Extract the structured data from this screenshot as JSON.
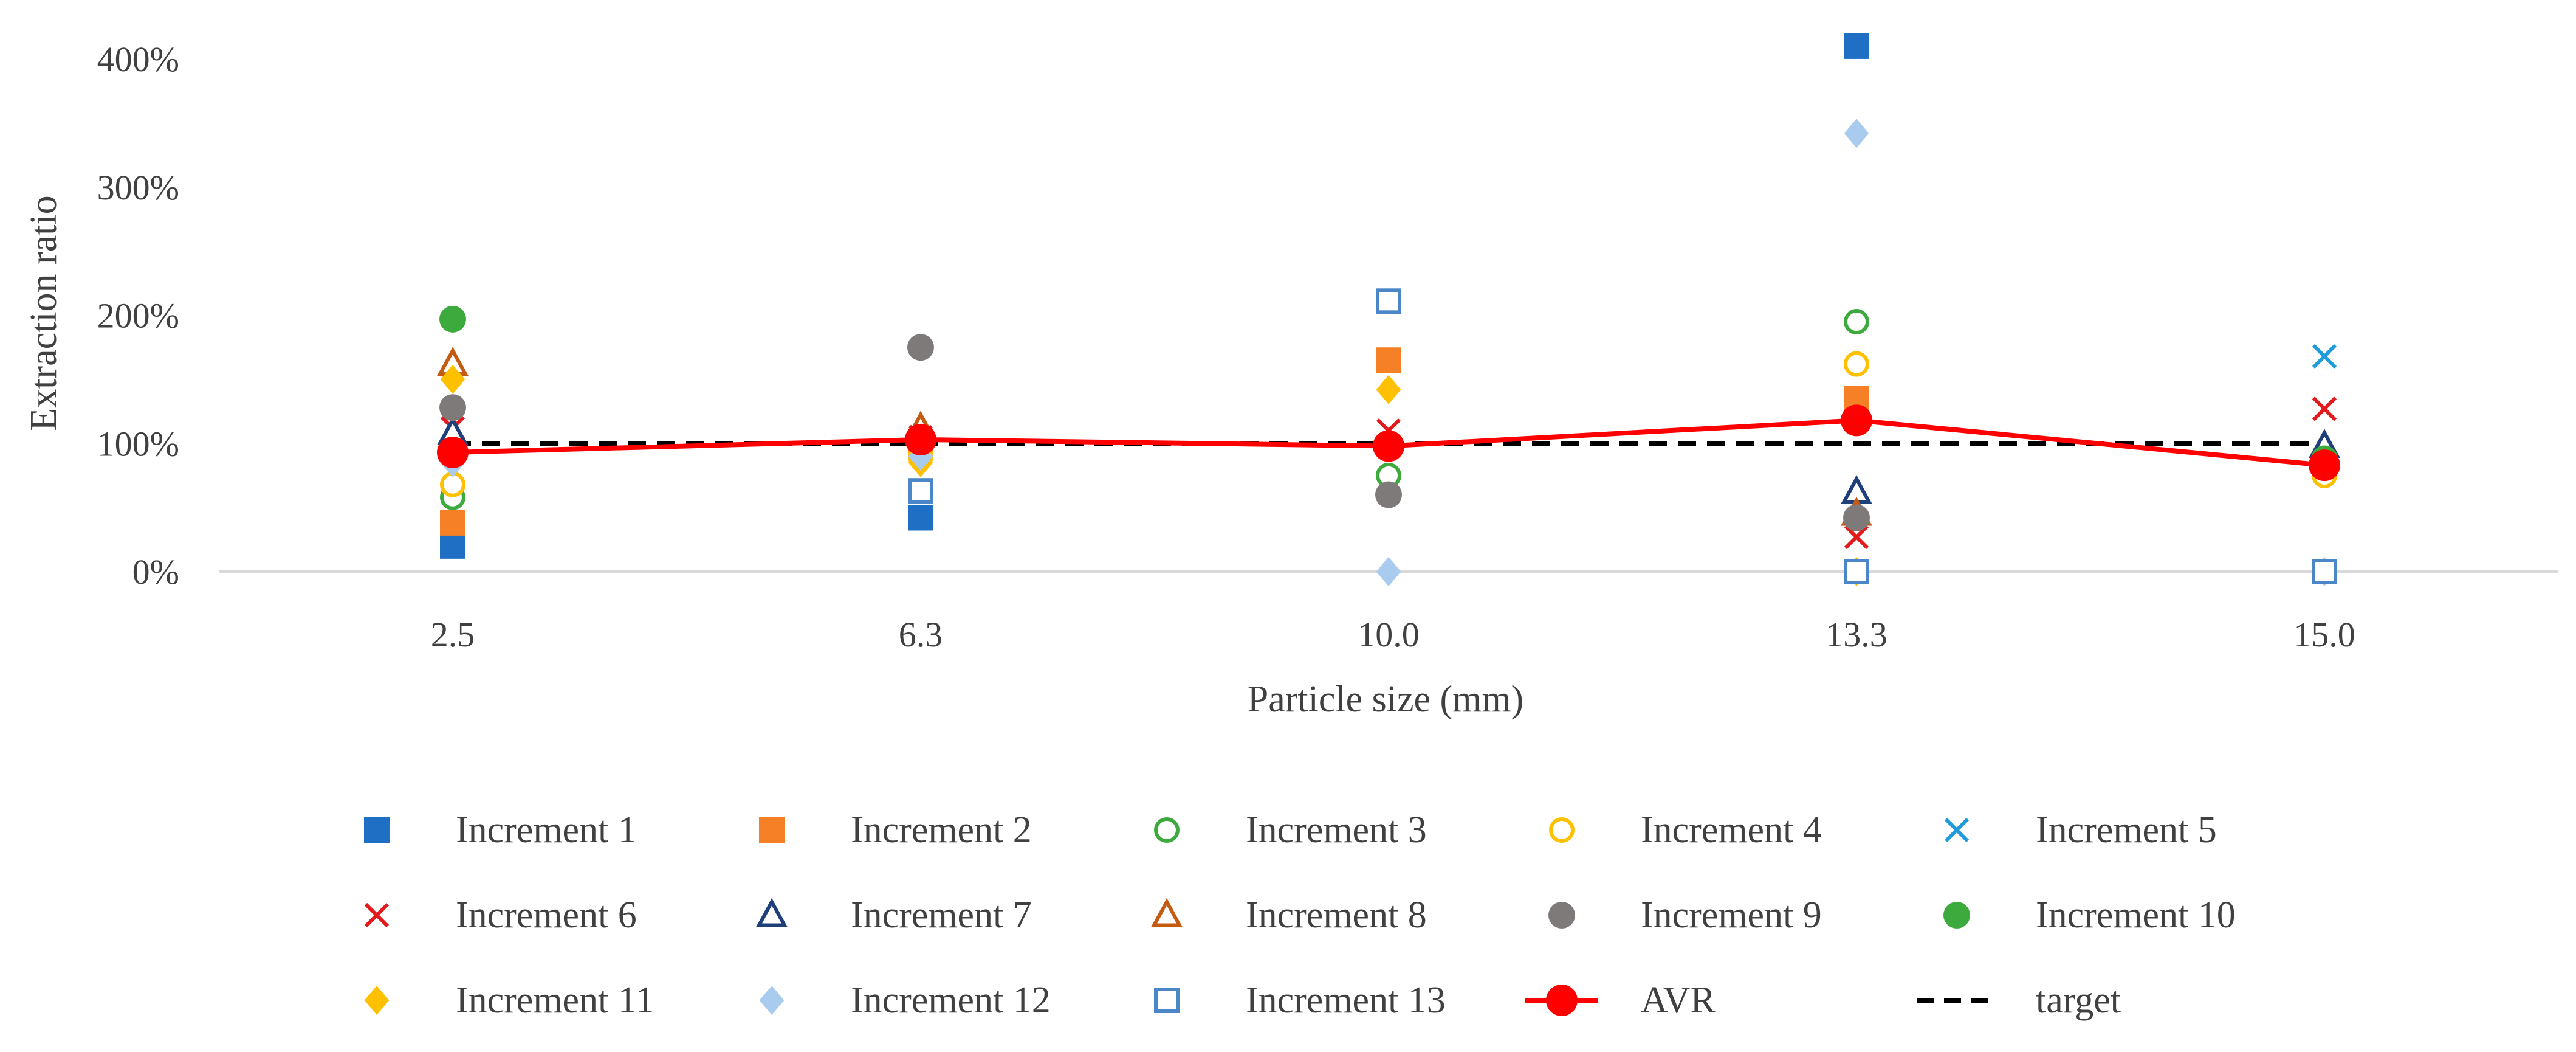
{
  "chart_data": {
    "type": "scatter",
    "title": "",
    "xlabel": "Particle size (mm)",
    "ylabel": "Extraction ratio",
    "categories": [
      "2.5",
      "6.3",
      "10.0",
      "13.3",
      "15.0"
    ],
    "y_ticks": [
      0,
      100,
      200,
      300,
      400
    ],
    "y_tick_labels": [
      "0%",
      "100%",
      "200%",
      "300%",
      "400%"
    ],
    "ylim": [
      0,
      420
    ],
    "grid": false,
    "legend_position": "bottom",
    "series": [
      {
        "name": "Increment 1",
        "marker": "square-filled",
        "color": "#1F6FC5",
        "values": [
          20,
          42,
          null,
          410,
          null
        ]
      },
      {
        "name": "Increment 2",
        "marker": "square-filled",
        "color": "#F58025",
        "values": [
          38,
          98,
          165,
          135,
          null
        ]
      },
      {
        "name": "Increment 3",
        "marker": "circle-open",
        "color": "#3DAA3D",
        "values": [
          58,
          null,
          75,
          195,
          null
        ]
      },
      {
        "name": "Increment 4",
        "marker": "circle-open",
        "color": "#FFC000",
        "values": [
          68,
          90,
          null,
          162,
          75
        ]
      },
      {
        "name": "Increment 5",
        "marker": "x",
        "color": "#1E9BDB",
        "values": [
          null,
          null,
          null,
          118,
          168
        ]
      },
      {
        "name": "Increment 6",
        "marker": "x",
        "color": "#E31A1C",
        "values": [
          112,
          105,
          110,
          27,
          127
        ]
      },
      {
        "name": "Increment 7",
        "marker": "triangle-open",
        "color": "#1F3F7A",
        "values": [
          108,
          112,
          null,
          62,
          98
        ]
      },
      {
        "name": "Increment 8",
        "marker": "triangle-open",
        "color": "#C55A11",
        "values": [
          162,
          112,
          null,
          45,
          null
        ]
      },
      {
        "name": "Increment 9",
        "marker": "circle-filled",
        "color": "#7F7A7A",
        "values": [
          128,
          175,
          60,
          42,
          null
        ]
      },
      {
        "name": "Increment 10",
        "marker": "circle-filled",
        "color": "#3DAA3D",
        "values": [
          197,
          null,
          97,
          null,
          88
        ]
      },
      {
        "name": "Increment 11",
        "marker": "diamond-filled",
        "color": "#FFC000",
        "values": [
          150,
          85,
          142,
          0,
          null
        ]
      },
      {
        "name": "Increment 12",
        "marker": "diamond-filled",
        "color": "#A9CBEE",
        "values": [
          85,
          90,
          0,
          342,
          0
        ]
      },
      {
        "name": "Increment 13",
        "marker": "square-open",
        "color": "#4A86C8",
        "values": [
          null,
          63,
          211,
          0,
          0
        ]
      },
      {
        "name": "AVR",
        "marker": "circle-filled-line",
        "color": "#FF0000",
        "values": [
          93,
          103,
          98,
          118,
          83
        ]
      },
      {
        "name": "target",
        "marker": "dashed-line",
        "color": "#000000",
        "values": [
          100,
          100,
          100,
          100,
          100
        ]
      }
    ]
  }
}
